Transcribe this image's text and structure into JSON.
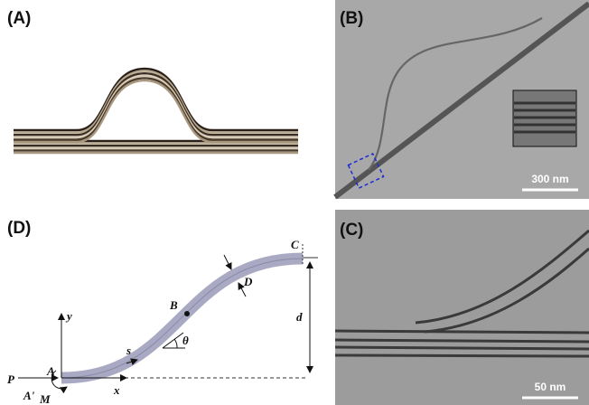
{
  "panels": {
    "a": {
      "label": "(A)"
    },
    "b": {
      "label": "(B)",
      "scale_bar": "300 nm"
    },
    "c": {
      "label": "(C)",
      "scale_bar": "50 nm"
    },
    "d": {
      "label": "(D)",
      "labels": [
        "C",
        "D",
        "B",
        "d",
        "θ",
        "s",
        "y",
        "x",
        "P",
        "A",
        "A'",
        "M"
      ]
    }
  }
}
